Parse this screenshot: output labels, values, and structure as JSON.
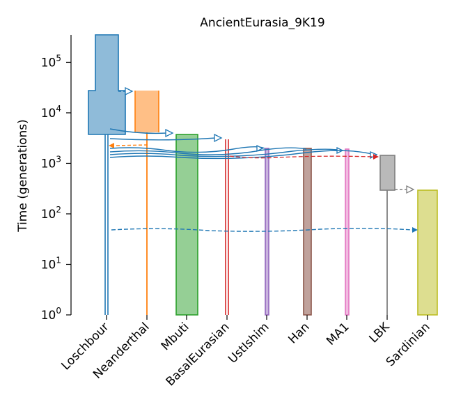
{
  "title": "AncientEurasia_9K19",
  "ylabel": "Time (generations)",
  "chart_data": {
    "type": "demes",
    "title": "AncientEurasia_9K19",
    "ylabel": "Time (generations)",
    "yscale": "log",
    "ylim": [
      1,
      350000
    ],
    "yticks": [
      {
        "value": 1,
        "base": "10",
        "exp": "0"
      },
      {
        "value": 10,
        "base": "10",
        "exp": "1"
      },
      {
        "value": 100,
        "base": "10",
        "exp": "2"
      },
      {
        "value": 1000,
        "base": "10",
        "exp": "3"
      },
      {
        "value": 10000,
        "base": "10",
        "exp": "4"
      },
      {
        "value": 100000,
        "base": "10",
        "exp": "5"
      }
    ],
    "demes": [
      {
        "name": "Loschbour",
        "color": "#1f77b4"
      },
      {
        "name": "Neanderthal",
        "color": "#ff7f0e"
      },
      {
        "name": "Mbuti",
        "color": "#2ca02c"
      },
      {
        "name": "BasalEurasian",
        "color": "#d62728"
      },
      {
        "name": "UstIshim",
        "color": "#9467bd"
      },
      {
        "name": "Han",
        "color": "#8c564b"
      },
      {
        "name": "MA1",
        "color": "#e377c2"
      },
      {
        "name": "LBK",
        "color": "#7f7f7f"
      },
      {
        "name": "Sardinian",
        "color": "#bcbd22"
      }
    ]
  }
}
